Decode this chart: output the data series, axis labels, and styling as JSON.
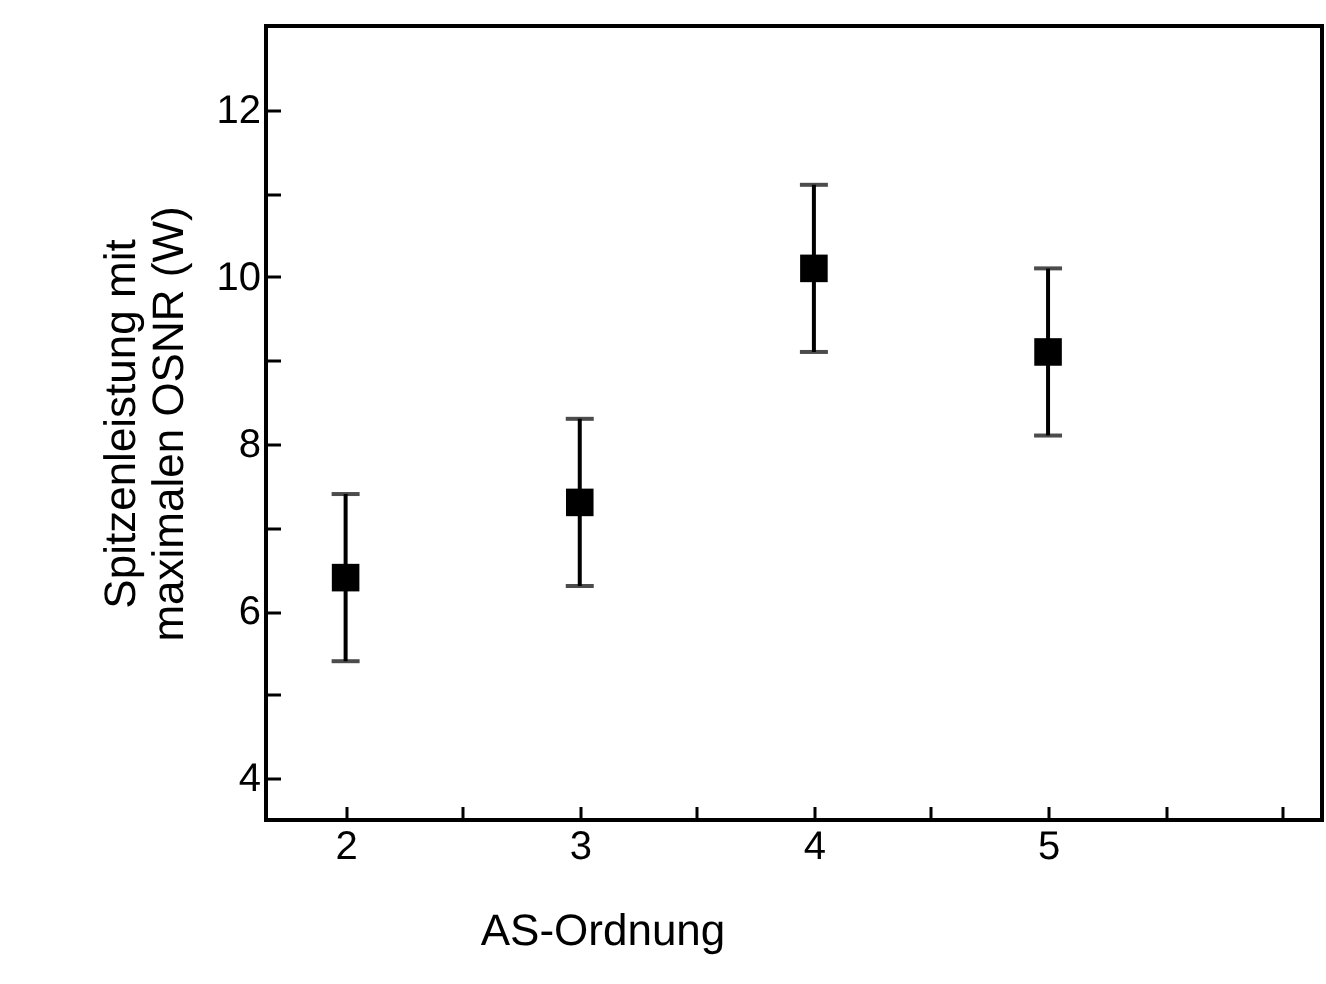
{
  "chart_data": {
    "type": "scatter",
    "xlabel": "AS-Ordnung",
    "ylabel": "Spitzenleistung mit\nmaximalen OSNR (W)",
    "x": [
      2,
      3,
      4,
      5
    ],
    "series": [
      {
        "color": "#000000",
        "values": [
          6.4,
          7.3,
          10.1,
          9.1
        ],
        "errors": [
          1,
          1,
          1,
          1
        ]
      }
    ],
    "xlim": [
      1.66,
      6.17
    ],
    "ylim": [
      3.5,
      13
    ],
    "xticks": [
      2,
      {
        "value": 2.5,
        "label": null
      },
      3,
      {
        "value": 3.5,
        "label": null
      },
      4,
      {
        "value": 4.5,
        "label": null
      },
      5,
      {
        "value": 5.5,
        "label": null
      },
      {
        "value": 6,
        "label": null
      }
    ],
    "yticks": [
      4,
      {
        "value": 5,
        "label": null
      },
      6,
      {
        "value": 7,
        "label": null
      },
      8,
      {
        "value": 9,
        "label": null
      },
      10,
      {
        "value": 11,
        "label": null
      },
      12
    ],
    "marker": "square"
  }
}
